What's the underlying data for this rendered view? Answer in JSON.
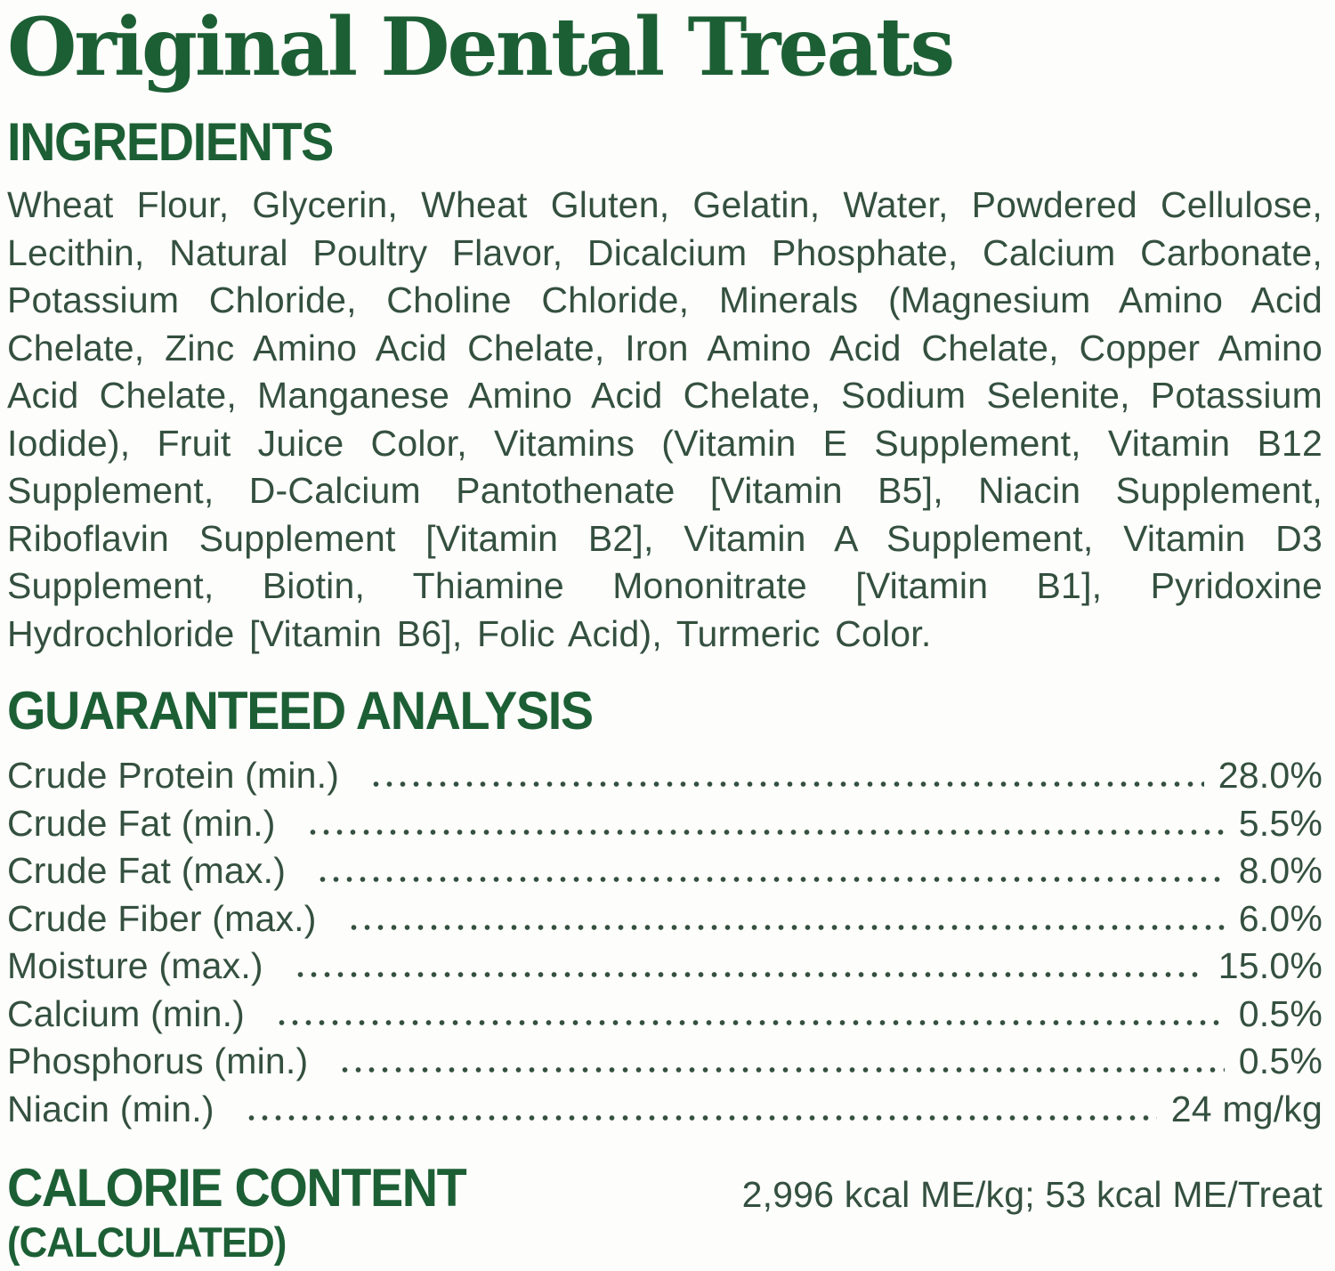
{
  "page": {
    "title": "Original Dental Treats"
  },
  "ingredients": {
    "heading": "INGREDIENTS",
    "text": "Wheat Flour, Glycerin, Wheat Gluten, Gelatin, Water, Powdered Cellulose, Lecithin, Natural Poultry Flavor, Dicalcium Phosphate, Calcium Carbonate, Potassium Chloride, Choline Chloride, Minerals (Magnesium Amino Acid Chelate, Zinc Amino Acid Chelate, Iron Amino Acid Chelate, Copper Amino Acid Chelate, Manganese Amino Acid Chelate, Sodium Selenite, Potassium Iodide), Fruit Juice Color, Vitamins (Vitamin E Supplement, Vitamin B12 Supplement, D-Calcium Pantothenate [Vitamin B5], Niacin Supplement, Riboflavin Supplement [Vitamin B2], Vitamin A Supplement, Vitamin D3 Supplement, Biotin, Thiamine Mononitrate [Vitamin B1], Pyridoxine Hydrochloride [Vitamin B6], Folic Acid), Turmeric Color."
  },
  "analysis": {
    "heading": "GUARANTEED ANALYSIS",
    "rows": [
      {
        "label": "Crude Protein (min.)",
        "value": "28.0%"
      },
      {
        "label": "Crude Fat (min.)",
        "value": "5.5%"
      },
      {
        "label": "Crude Fat (max.)",
        "value": "8.0%"
      },
      {
        "label": "Crude Fiber (max.)",
        "value": "6.0%"
      },
      {
        "label": "Moisture (max.)",
        "value": "15.0%"
      },
      {
        "label": "Calcium (min.)",
        "value": "0.5%"
      },
      {
        "label": "Phosphorus (min.)",
        "value": "0.5%"
      },
      {
        "label": "Niacin (min.)",
        "value": "24 mg/kg"
      }
    ]
  },
  "calories": {
    "heading": "CALORIE CONTENT",
    "subheading": "(CALCULATED)",
    "value": "2,996 kcal ME/kg; 53 kcal ME/Treat"
  },
  "colors": {
    "heading_green": "#1d5f35",
    "body_green": "#34503f",
    "background": "#fdfdfb"
  }
}
